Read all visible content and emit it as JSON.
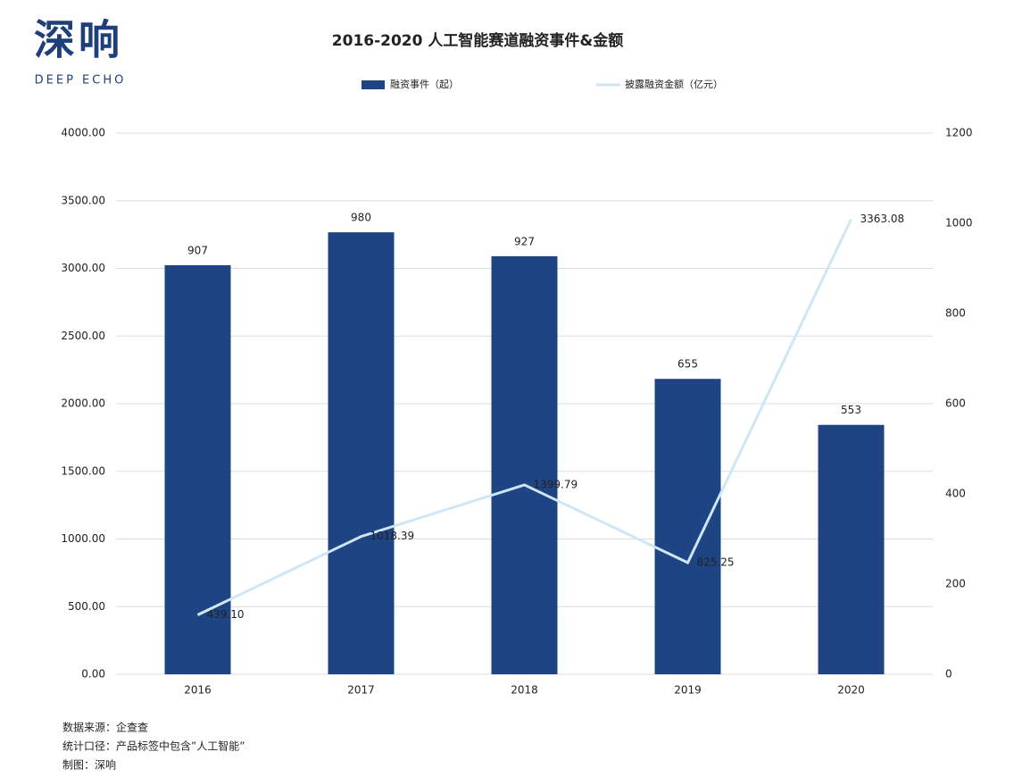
{
  "logo": {
    "name": "深响",
    "subtitle": "DEEP ECHO"
  },
  "chart_data": {
    "type": "bar",
    "title": "2016-2020 人工智能赛道融资事件&金额",
    "categories": [
      "2016",
      "2017",
      "2018",
      "2019",
      "2020"
    ],
    "series": [
      {
        "name": "融资事件（起）",
        "type": "bar",
        "axis": "y2",
        "color": "#1f4483",
        "values": [
          907,
          980,
          927,
          655,
          553
        ]
      },
      {
        "name": "披露融资金额（亿元）",
        "type": "line",
        "color": "#cfe6f5",
        "values": [
          439.1,
          1018.39,
          1399.79,
          825.25,
          3363.08
        ],
        "value_labels": [
          "439.10",
          "1018.39",
          "1399.79",
          "825.25",
          "3363.08"
        ]
      }
    ],
    "ylim": [
      0,
      4000
    ],
    "yticks": [
      {
        "value": 0,
        "label": "0.00"
      },
      {
        "value": 500,
        "label": "500.00"
      },
      {
        "value": 1000,
        "label": "1000.00"
      },
      {
        "value": 1500,
        "label": "1500.00"
      },
      {
        "value": 2000,
        "label": "2000.00"
      },
      {
        "value": 2500,
        "label": "2500.00"
      },
      {
        "value": 3000,
        "label": "3000.00"
      },
      {
        "value": 3500,
        "label": "3500.00"
      },
      {
        "value": 4000,
        "label": "4000.00"
      }
    ],
    "y2lim": [
      0,
      1200
    ],
    "y2ticks": [
      0,
      200,
      400,
      600,
      800,
      1000,
      1200
    ],
    "grid": true,
    "legend": "top"
  },
  "notes": [
    "数据来源：企查查",
    "统计口径：产品标签中包含”人工智能”",
    "制图：深响"
  ]
}
